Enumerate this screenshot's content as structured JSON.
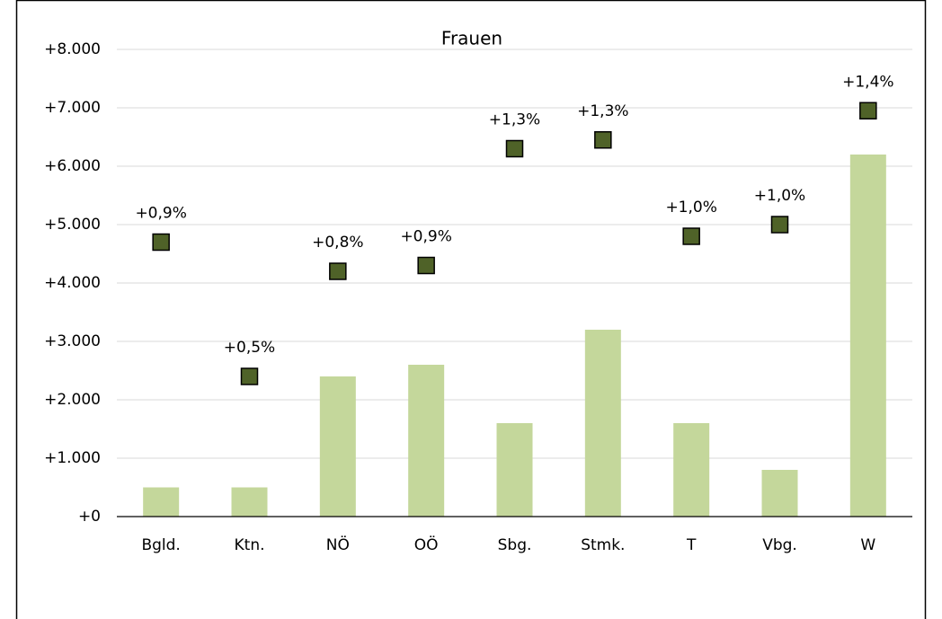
{
  "chart_data": {
    "type": "bar",
    "title": "Frauen",
    "categories": [
      "Bgld.",
      "Ktn.",
      "NÖ",
      "OÖ",
      "Sbg.",
      "Stmk.",
      "T",
      "Vbg.",
      "W"
    ],
    "series": [
      {
        "type": "bar",
        "color": "#c4d79b",
        "values": [
          500,
          500,
          2400,
          2600,
          1600,
          3200,
          1600,
          800,
          6200
        ]
      },
      {
        "type": "marker",
        "axis": "y2",
        "color": "#4f6228",
        "values": [
          0.94,
          0.48,
          0.84,
          0.86,
          1.26,
          1.29,
          0.96,
          1.0,
          1.39
        ],
        "value_labels": [
          "+0,9%",
          "+0,5%",
          "+0,8%",
          "+0,9%",
          "+1,3%",
          "+1,3%",
          "+1,0%",
          "+1,0%",
          "+1,4%"
        ]
      }
    ],
    "ylim": [
      0,
      8000
    ],
    "yticks": [
      {
        "value": 0,
        "label": "+0"
      },
      {
        "value": 1000,
        "label": "+1.000"
      },
      {
        "value": 2000,
        "label": "+2.000"
      },
      {
        "value": 3000,
        "label": "+3.000"
      },
      {
        "value": 4000,
        "label": "+4.000"
      },
      {
        "value": 5000,
        "label": "+5.000"
      },
      {
        "value": 6000,
        "label": "+6.000"
      },
      {
        "value": 7000,
        "label": "+7.000"
      },
      {
        "value": 8000,
        "label": "+8.000"
      }
    ],
    "y2lim": [
      0,
      1.6
    ],
    "grid": true
  }
}
